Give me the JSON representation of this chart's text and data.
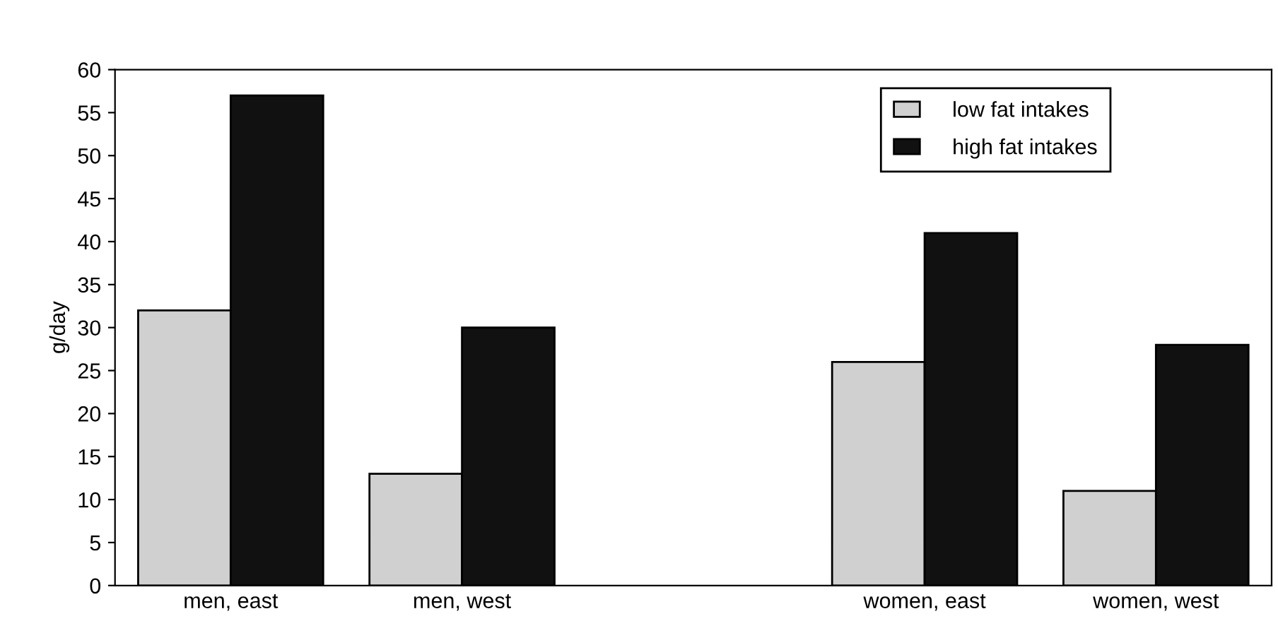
{
  "chart_data": {
    "type": "bar",
    "ylabel": "g/day",
    "categories": [
      "men, east",
      "men, west",
      null,
      "women, east",
      "women, west"
    ],
    "series": [
      {
        "name": "low fat intakes",
        "color": "#d0d0d0",
        "values": [
          32,
          13,
          null,
          26,
          11
        ]
      },
      {
        "name": "high fat intakes",
        "color": "#111111",
        "values": [
          57,
          30,
          null,
          41,
          28
        ]
      }
    ],
    "ylim": [
      0,
      60
    ],
    "yticks": [
      0,
      5,
      10,
      15,
      20,
      25,
      30,
      35,
      40,
      45,
      50,
      55,
      60
    ],
    "grid": false,
    "legend": "top right"
  }
}
